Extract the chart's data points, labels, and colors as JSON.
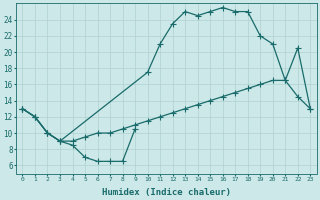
{
  "xlabel": "Humidex (Indice chaleur)",
  "background_color": "#cce8e8",
  "line_color": "#1a6b6b",
  "grid_color": "#b0d0d0",
  "xlim": [
    -0.5,
    23.5
  ],
  "ylim": [
    5,
    26
  ],
  "xticks": [
    0,
    1,
    2,
    3,
    4,
    5,
    6,
    7,
    8,
    9,
    10,
    11,
    12,
    13,
    14,
    15,
    16,
    17,
    18,
    19,
    20,
    21,
    22,
    23
  ],
  "yticks": [
    6,
    8,
    10,
    12,
    14,
    16,
    18,
    20,
    22,
    24
  ],
  "line1_x": [
    0,
    1,
    2,
    3,
    4,
    5,
    6,
    7,
    8,
    9
  ],
  "line1_y": [
    13.0,
    12.0,
    10.0,
    9.0,
    8.5,
    7.0,
    6.5,
    6.5,
    6.5,
    10.5
  ],
  "line2_x": [
    0,
    1,
    2,
    3,
    4,
    5,
    6,
    7,
    8,
    9,
    10,
    11,
    12,
    13,
    14,
    15,
    16,
    17,
    18,
    19,
    20,
    21,
    22,
    23
  ],
  "line2_y": [
    13.0,
    12.0,
    10.0,
    9.0,
    9.0,
    9.5,
    10.0,
    10.0,
    10.5,
    11.0,
    11.5,
    12.0,
    12.5,
    13.0,
    13.5,
    14.0,
    14.5,
    15.0,
    15.5,
    16.0,
    16.5,
    16.5,
    14.5,
    13.0
  ],
  "line3_x": [
    0,
    1,
    2,
    3,
    10,
    11,
    12,
    13,
    14,
    15,
    16,
    17,
    18,
    19,
    20,
    21,
    22,
    23
  ],
  "line3_y": [
    13.0,
    12.0,
    10.0,
    9.0,
    17.5,
    21.0,
    23.5,
    25.0,
    24.5,
    25.0,
    25.5,
    25.0,
    25.0,
    22.0,
    21.0,
    16.5,
    20.5,
    13.0
  ]
}
